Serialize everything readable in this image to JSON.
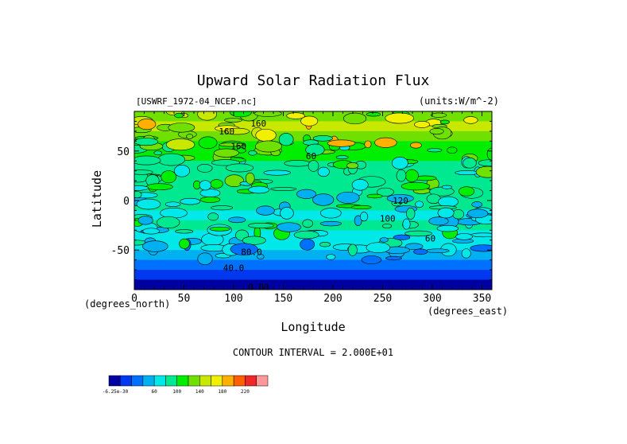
{
  "chart_data": {
    "type": "heatmap",
    "title": "Upward Solar Radiation Flux",
    "dataset_label": "[USWRF_1972-04_NCEP.nc]",
    "units_label": "(units:W/m^-2)",
    "xlabel": "Longitude",
    "ylabel": "Latitude",
    "x_unit_label": "(degrees_east)",
    "y_unit_label": "(degrees_north)",
    "xlim": [
      0,
      360
    ],
    "ylim": [
      -90,
      90
    ],
    "xticks": [
      0,
      50,
      100,
      150,
      200,
      250,
      300,
      350
    ],
    "yticks": [
      -50,
      0,
      50
    ],
    "contour_interval_text": "CONTOUR INTERVAL = 2.000E+01",
    "contour_labels": [
      {
        "text": "160",
        "lon": 125,
        "lat": 78
      },
      {
        "text": "160",
        "lon": 93,
        "lat": 70
      },
      {
        "text": "160",
        "lon": 105,
        "lat": 55
      },
      {
        "text": "60",
        "lon": 178,
        "lat": 45
      },
      {
        "text": "120",
        "lon": 268,
        "lat": 0
      },
      {
        "text": "100",
        "lon": 255,
        "lat": -18
      },
      {
        "text": "60",
        "lon": 298,
        "lat": -38
      },
      {
        "text": "80.0",
        "lon": 118,
        "lat": -52
      },
      {
        "text": "40.0",
        "lon": 100,
        "lat": -68
      },
      {
        "text": "0.00",
        "lon": 125,
        "lat": -87
      }
    ],
    "zonal_mean_flux_by_latitude": {
      "lat": [
        85,
        75,
        65,
        55,
        45,
        35,
        25,
        15,
        5,
        -5,
        -15,
        -25,
        -35,
        -45,
        -55,
        -65,
        -75,
        -85
      ],
      "flux": [
        150,
        175,
        150,
        125,
        125,
        115,
        115,
        115,
        105,
        100,
        95,
        100,
        90,
        85,
        70,
        40,
        20,
        0
      ]
    },
    "colorbar": {
      "colors": [
        "#0000a0",
        "#0038f0",
        "#0070ff",
        "#00b0f0",
        "#00e8e8",
        "#00e890",
        "#00ee00",
        "#70e000",
        "#c8e800",
        "#f0f000",
        "#ffb000",
        "#ff6000",
        "#f02828",
        "#ff9898"
      ],
      "tick_labels": [
        "-6.25e-30",
        "60",
        "100",
        "140",
        "180",
        "220"
      ]
    }
  }
}
